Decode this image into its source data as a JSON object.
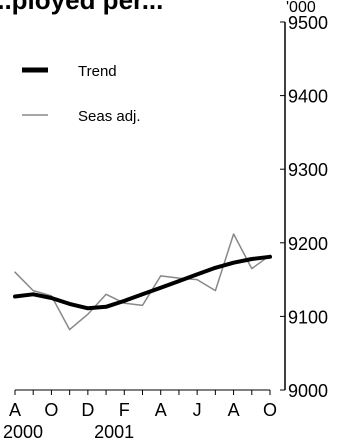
{
  "chart_data": {
    "type": "line",
    "title": "...ployed per...",
    "ylabel": "'000",
    "ylim": [
      9000,
      9500
    ],
    "yticks": [
      9000,
      9100,
      9200,
      9300,
      9400,
      9500
    ],
    "x_tick_labels": [
      "A",
      "O",
      "D",
      "F",
      "A",
      "J",
      "A",
      "O"
    ],
    "year_labels": [
      "2000",
      "2001"
    ],
    "x": [
      "2000-08",
      "2000-09",
      "2000-10",
      "2000-11",
      "2000-12",
      "2001-01",
      "2001-02",
      "2001-03",
      "2001-04",
      "2001-05",
      "2001-06",
      "2001-07",
      "2001-08",
      "2001-09",
      "2001-10"
    ],
    "series": [
      {
        "name": "Trend",
        "color": "#000000",
        "values": [
          9127,
          9130,
          9125,
          9117,
          9111,
          9113,
          9121,
          9130,
          9139,
          9148,
          9157,
          9166,
          9173,
          9178,
          9181
        ]
      },
      {
        "name": "Seas adj.",
        "color": "#888888",
        "values": [
          9160,
          9135,
          9128,
          9082,
          9103,
          9130,
          9118,
          9115,
          9155,
          9152,
          9150,
          9135,
          9212,
          9165,
          9183
        ]
      }
    ],
    "grid": false,
    "legend": "top-left"
  }
}
